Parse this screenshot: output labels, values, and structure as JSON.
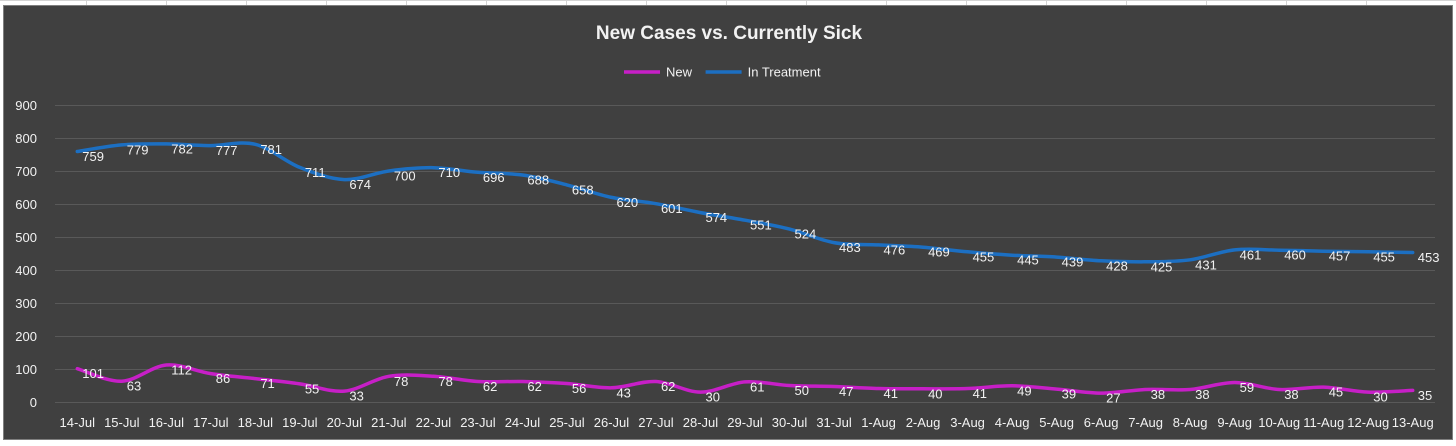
{
  "chart_data": {
    "type": "line",
    "title": "New Cases vs. Currently Sick",
    "xlabel": "",
    "ylabel": "",
    "ylim": [
      0,
      900
    ],
    "yticks": [
      0,
      100,
      200,
      300,
      400,
      500,
      600,
      700,
      800,
      900
    ],
    "grid": true,
    "legend_position": "top",
    "categories": [
      "14-Jul",
      "15-Jul",
      "16-Jul",
      "17-Jul",
      "18-Jul",
      "19-Jul",
      "20-Jul",
      "21-Jul",
      "22-Jul",
      "23-Jul",
      "24-Jul",
      "25-Jul",
      "26-Jul",
      "27-Jul",
      "28-Jul",
      "29-Jul",
      "30-Jul",
      "31-Jul",
      "1-Aug",
      "2-Aug",
      "3-Aug",
      "4-Aug",
      "5-Aug",
      "6-Aug",
      "7-Aug",
      "8-Aug",
      "9-Aug",
      "10-Aug",
      "11-Aug",
      "12-Aug",
      "13-Aug"
    ],
    "series": [
      {
        "name": "New",
        "color": "#c71fc7",
        "values": [
          101,
          63,
          112,
          86,
          71,
          55,
          33,
          78,
          78,
          62,
          62,
          56,
          43,
          62,
          30,
          61,
          50,
          47,
          41,
          40,
          41,
          49,
          39,
          27,
          38,
          38,
          59,
          38,
          45,
          30,
          35
        ]
      },
      {
        "name": "In Treatment",
        "color": "#1c6fc2",
        "values": [
          759,
          779,
          782,
          777,
          781,
          711,
          674,
          700,
          710,
          696,
          688,
          658,
          620,
          601,
          574,
          551,
          524,
          483,
          476,
          469,
          455,
          445,
          439,
          428,
          425,
          431,
          461,
          460,
          457,
          455,
          453
        ]
      }
    ],
    "colors": {
      "background": "#404040",
      "text": "#f2f2f2",
      "gridline": "#595959"
    }
  }
}
